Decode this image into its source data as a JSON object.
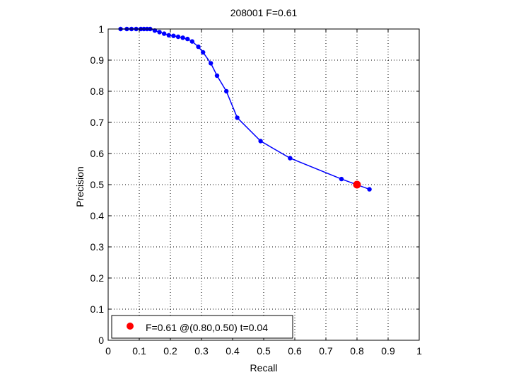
{
  "chart_data": {
    "type": "line",
    "title": "208001 F=0.61",
    "xlabel": "Recall",
    "ylabel": "Precision",
    "xlim": [
      0,
      1
    ],
    "ylim": [
      0,
      1
    ],
    "xticks": [
      "0",
      "0.1",
      "0.2",
      "0.3",
      "0.4",
      "0.5",
      "0.6",
      "0.7",
      "0.8",
      "0.9",
      "1"
    ],
    "yticks": [
      "0",
      "0.1",
      "0.2",
      "0.3",
      "0.4",
      "0.5",
      "0.6",
      "0.7",
      "0.8",
      "0.9",
      "1"
    ],
    "grid": true,
    "legend_position": "bottom-left",
    "series": [
      {
        "color": "#0000ff",
        "x": [
          0.04,
          0.06,
          0.075,
          0.09,
          0.105,
          0.115,
          0.125,
          0.135,
          0.15,
          0.165,
          0.18,
          0.195,
          0.21,
          0.225,
          0.24,
          0.255,
          0.27,
          0.29,
          0.305,
          0.33,
          0.35,
          0.38,
          0.415,
          0.49,
          0.585,
          0.75,
          0.84
        ],
        "y": [
          1.0,
          1.0,
          1.0,
          1.0,
          1.0,
          1.0,
          1.0,
          1.0,
          0.995,
          0.99,
          0.985,
          0.98,
          0.978,
          0.975,
          0.972,
          0.968,
          0.96,
          0.943,
          0.925,
          0.89,
          0.85,
          0.8,
          0.715,
          0.64,
          0.585,
          0.518,
          0.485
        ]
      }
    ],
    "highlight_point": {
      "x": 0.8,
      "y": 0.5,
      "color": "#ff0000"
    },
    "legend": {
      "label": "F=0.61 @(0.80,0.50) t=0.04",
      "color": "#ff0000"
    }
  }
}
